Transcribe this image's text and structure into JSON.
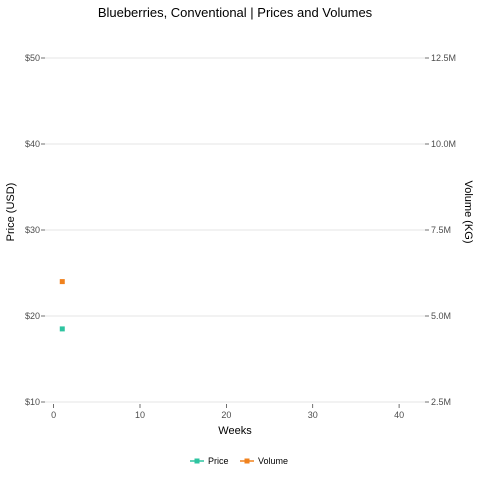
{
  "chart_data": {
    "type": "scatter",
    "title": "Blueberries, Conventional | Prices and Volumes",
    "xlabel": "Weeks",
    "ylabel_left": "Price (USD)",
    "ylabel_right": "Volume (KG)",
    "xlim": [
      -1,
      43
    ],
    "ylim_left": [
      10,
      50
    ],
    "ylim_right": [
      2500000,
      12500000
    ],
    "x_ticks": [
      {
        "value": 0,
        "label": "0"
      },
      {
        "value": 10,
        "label": "10"
      },
      {
        "value": 20,
        "label": "20"
      },
      {
        "value": 30,
        "label": "30"
      },
      {
        "value": 40,
        "label": "40"
      }
    ],
    "y_left_ticks": [
      {
        "value": 10,
        "label": "$10"
      },
      {
        "value": 20,
        "label": "$20"
      },
      {
        "value": 30,
        "label": "$30"
      },
      {
        "value": 40,
        "label": "$40"
      },
      {
        "value": 50,
        "label": "$50"
      }
    ],
    "y_right_ticks": [
      {
        "value": 2500000,
        "label": "2.5M"
      },
      {
        "value": 5000000,
        "label": "5.0M"
      },
      {
        "value": 7500000,
        "label": "7.5M"
      },
      {
        "value": 10000000,
        "label": "10.0M"
      },
      {
        "value": 12500000,
        "label": "12.5M"
      }
    ],
    "grid": true,
    "legend_position": "bottom",
    "series": [
      {
        "name": "Price",
        "axis": "left",
        "color": "#2ec4a0",
        "points": [
          {
            "x": 1,
            "y": 18.5
          }
        ]
      },
      {
        "name": "Volume",
        "axis": "right",
        "color": "#f0821e",
        "points": [
          {
            "x": 1,
            "y": 6000000
          }
        ]
      }
    ]
  }
}
